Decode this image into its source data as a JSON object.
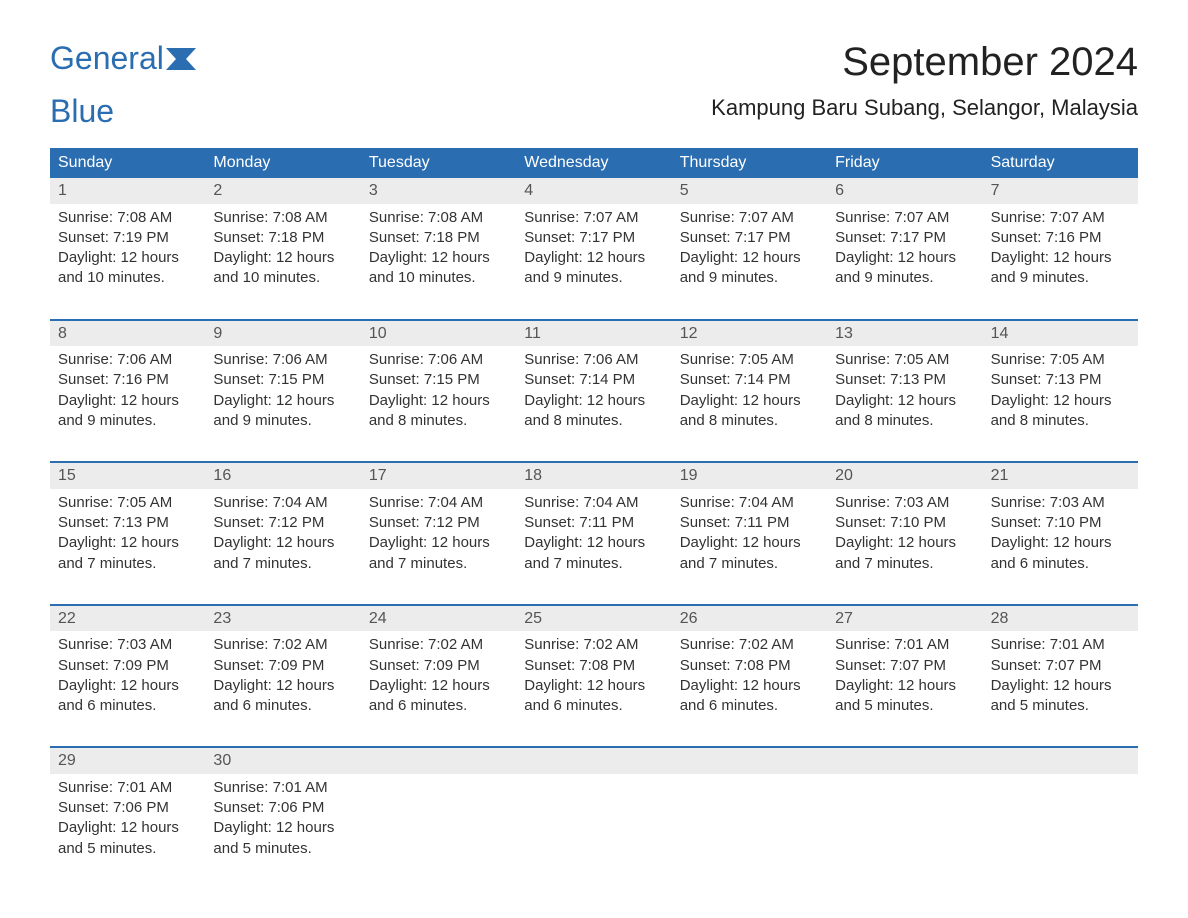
{
  "logo": {
    "text1": "General",
    "text2": "Blue"
  },
  "title": "September 2024",
  "location": "Kampung Baru Subang, Selangor, Malaysia",
  "weekdays": [
    "Sunday",
    "Monday",
    "Tuesday",
    "Wednesday",
    "Thursday",
    "Friday",
    "Saturday"
  ],
  "colors": {
    "header_bg": "#2a6db1",
    "header_text": "#ffffff",
    "daynum_bg": "#ececec",
    "border": "#2a6db1",
    "body_text": "#333333",
    "logo_color": "#2a6db1"
  },
  "weeks": [
    [
      {
        "n": "1",
        "sr": "Sunrise: 7:08 AM",
        "ss": "Sunset: 7:19 PM",
        "d1": "Daylight: 12 hours",
        "d2": "and 10 minutes."
      },
      {
        "n": "2",
        "sr": "Sunrise: 7:08 AM",
        "ss": "Sunset: 7:18 PM",
        "d1": "Daylight: 12 hours",
        "d2": "and 10 minutes."
      },
      {
        "n": "3",
        "sr": "Sunrise: 7:08 AM",
        "ss": "Sunset: 7:18 PM",
        "d1": "Daylight: 12 hours",
        "d2": "and 10 minutes."
      },
      {
        "n": "4",
        "sr": "Sunrise: 7:07 AM",
        "ss": "Sunset: 7:17 PM",
        "d1": "Daylight: 12 hours",
        "d2": "and 9 minutes."
      },
      {
        "n": "5",
        "sr": "Sunrise: 7:07 AM",
        "ss": "Sunset: 7:17 PM",
        "d1": "Daylight: 12 hours",
        "d2": "and 9 minutes."
      },
      {
        "n": "6",
        "sr": "Sunrise: 7:07 AM",
        "ss": "Sunset: 7:17 PM",
        "d1": "Daylight: 12 hours",
        "d2": "and 9 minutes."
      },
      {
        "n": "7",
        "sr": "Sunrise: 7:07 AM",
        "ss": "Sunset: 7:16 PM",
        "d1": "Daylight: 12 hours",
        "d2": "and 9 minutes."
      }
    ],
    [
      {
        "n": "8",
        "sr": "Sunrise: 7:06 AM",
        "ss": "Sunset: 7:16 PM",
        "d1": "Daylight: 12 hours",
        "d2": "and 9 minutes."
      },
      {
        "n": "9",
        "sr": "Sunrise: 7:06 AM",
        "ss": "Sunset: 7:15 PM",
        "d1": "Daylight: 12 hours",
        "d2": "and 9 minutes."
      },
      {
        "n": "10",
        "sr": "Sunrise: 7:06 AM",
        "ss": "Sunset: 7:15 PM",
        "d1": "Daylight: 12 hours",
        "d2": "and 8 minutes."
      },
      {
        "n": "11",
        "sr": "Sunrise: 7:06 AM",
        "ss": "Sunset: 7:14 PM",
        "d1": "Daylight: 12 hours",
        "d2": "and 8 minutes."
      },
      {
        "n": "12",
        "sr": "Sunrise: 7:05 AM",
        "ss": "Sunset: 7:14 PM",
        "d1": "Daylight: 12 hours",
        "d2": "and 8 minutes."
      },
      {
        "n": "13",
        "sr": "Sunrise: 7:05 AM",
        "ss": "Sunset: 7:13 PM",
        "d1": "Daylight: 12 hours",
        "d2": "and 8 minutes."
      },
      {
        "n": "14",
        "sr": "Sunrise: 7:05 AM",
        "ss": "Sunset: 7:13 PM",
        "d1": "Daylight: 12 hours",
        "d2": "and 8 minutes."
      }
    ],
    [
      {
        "n": "15",
        "sr": "Sunrise: 7:05 AM",
        "ss": "Sunset: 7:13 PM",
        "d1": "Daylight: 12 hours",
        "d2": "and 7 minutes."
      },
      {
        "n": "16",
        "sr": "Sunrise: 7:04 AM",
        "ss": "Sunset: 7:12 PM",
        "d1": "Daylight: 12 hours",
        "d2": "and 7 minutes."
      },
      {
        "n": "17",
        "sr": "Sunrise: 7:04 AM",
        "ss": "Sunset: 7:12 PM",
        "d1": "Daylight: 12 hours",
        "d2": "and 7 minutes."
      },
      {
        "n": "18",
        "sr": "Sunrise: 7:04 AM",
        "ss": "Sunset: 7:11 PM",
        "d1": "Daylight: 12 hours",
        "d2": "and 7 minutes."
      },
      {
        "n": "19",
        "sr": "Sunrise: 7:04 AM",
        "ss": "Sunset: 7:11 PM",
        "d1": "Daylight: 12 hours",
        "d2": "and 7 minutes."
      },
      {
        "n": "20",
        "sr": "Sunrise: 7:03 AM",
        "ss": "Sunset: 7:10 PM",
        "d1": "Daylight: 12 hours",
        "d2": "and 7 minutes."
      },
      {
        "n": "21",
        "sr": "Sunrise: 7:03 AM",
        "ss": "Sunset: 7:10 PM",
        "d1": "Daylight: 12 hours",
        "d2": "and 6 minutes."
      }
    ],
    [
      {
        "n": "22",
        "sr": "Sunrise: 7:03 AM",
        "ss": "Sunset: 7:09 PM",
        "d1": "Daylight: 12 hours",
        "d2": "and 6 minutes."
      },
      {
        "n": "23",
        "sr": "Sunrise: 7:02 AM",
        "ss": "Sunset: 7:09 PM",
        "d1": "Daylight: 12 hours",
        "d2": "and 6 minutes."
      },
      {
        "n": "24",
        "sr": "Sunrise: 7:02 AM",
        "ss": "Sunset: 7:09 PM",
        "d1": "Daylight: 12 hours",
        "d2": "and 6 minutes."
      },
      {
        "n": "25",
        "sr": "Sunrise: 7:02 AM",
        "ss": "Sunset: 7:08 PM",
        "d1": "Daylight: 12 hours",
        "d2": "and 6 minutes."
      },
      {
        "n": "26",
        "sr": "Sunrise: 7:02 AM",
        "ss": "Sunset: 7:08 PM",
        "d1": "Daylight: 12 hours",
        "d2": "and 6 minutes."
      },
      {
        "n": "27",
        "sr": "Sunrise: 7:01 AM",
        "ss": "Sunset: 7:07 PM",
        "d1": "Daylight: 12 hours",
        "d2": "and 5 minutes."
      },
      {
        "n": "28",
        "sr": "Sunrise: 7:01 AM",
        "ss": "Sunset: 7:07 PM",
        "d1": "Daylight: 12 hours",
        "d2": "and 5 minutes."
      }
    ],
    [
      {
        "n": "29",
        "sr": "Sunrise: 7:01 AM",
        "ss": "Sunset: 7:06 PM",
        "d1": "Daylight: 12 hours",
        "d2": "and 5 minutes."
      },
      {
        "n": "30",
        "sr": "Sunrise: 7:01 AM",
        "ss": "Sunset: 7:06 PM",
        "d1": "Daylight: 12 hours",
        "d2": "and 5 minutes."
      },
      null,
      null,
      null,
      null,
      null
    ]
  ]
}
